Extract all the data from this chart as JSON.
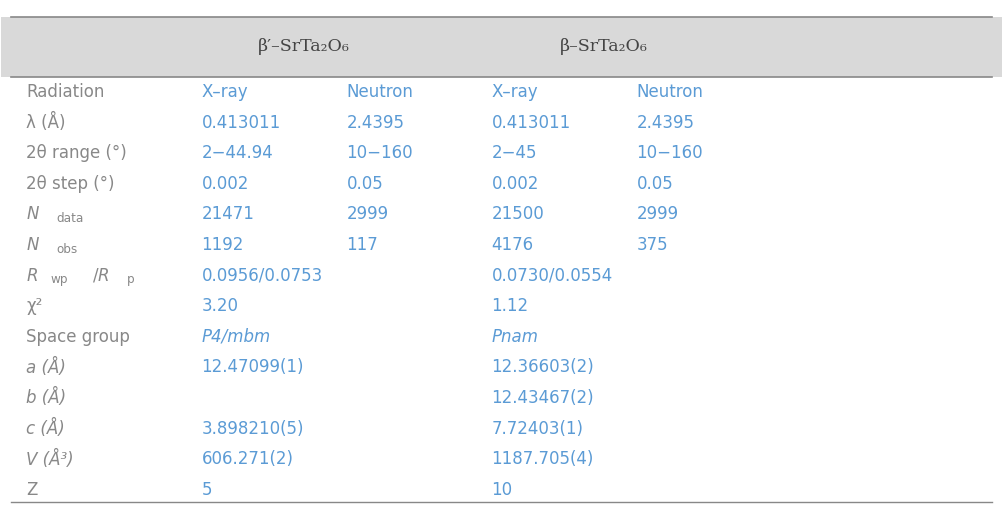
{
  "bg_color": "#ffffff",
  "header_bg": "#d9d9d9",
  "table_border_color": "#888888",
  "text_color_header": "#444444",
  "text_color_value": "#5b9bd5",
  "text_color_row_label": "#888888",
  "font_size": 12,
  "header_font_size": 12.5,
  "header_row": {
    "col1_text": "β′–SrTa₂O₆",
    "col2_text": "β–SrTa₂O₆"
  },
  "rows": [
    {
      "label": "Radiation",
      "label_style": "normal",
      "cols": [
        "X–ray",
        "Neutron",
        "X–ray",
        "Neutron"
      ]
    },
    {
      "label": "λ (Å)",
      "label_style": "normal",
      "cols": [
        "0.413011",
        "2.4395",
        "0.413011",
        "2.4395"
      ]
    },
    {
      "label": "2θ range (°)",
      "label_style": "normal",
      "cols": [
        "2−44.94",
        "10−160",
        "2−45",
        "10−160"
      ]
    },
    {
      "label": "2θ step (°)",
      "label_style": "normal",
      "cols": [
        "0.002",
        "0.05",
        "0.002",
        "0.05"
      ]
    },
    {
      "label": "N_data",
      "label_style": "subscript",
      "cols": [
        "21471",
        "2999",
        "21500",
        "2999"
      ]
    },
    {
      "label": "N_obs",
      "label_style": "subscript",
      "cols": [
        "1192",
        "117",
        "4176",
        "375"
      ]
    },
    {
      "label": "R_wp/R_p",
      "label_style": "subscript",
      "cols": [
        "0.0956/0.0753",
        "",
        "0.0730/0.0554",
        ""
      ]
    },
    {
      "label": "χ²",
      "label_style": "normal",
      "cols": [
        "3.20",
        "",
        "1.12",
        ""
      ]
    },
    {
      "label": "Space group",
      "label_style": "normal",
      "cols": [
        "P4/mbm",
        "",
        "Pnam",
        ""
      ]
    },
    {
      "label": "a (Å)",
      "label_style": "italic",
      "cols": [
        "12.47099(1)",
        "",
        "12.36603(2)",
        ""
      ]
    },
    {
      "label": "b (Å)",
      "label_style": "italic",
      "cols": [
        "",
        "",
        "12.43467(2)",
        ""
      ]
    },
    {
      "label": "c (Å)",
      "label_style": "italic",
      "cols": [
        "3.898210(5)",
        "",
        "7.72403(1)",
        ""
      ]
    },
    {
      "label": "V (Å³)",
      "label_style": "italic",
      "cols": [
        "606.271(2)",
        "",
        "1187.705(4)",
        ""
      ]
    },
    {
      "label": "Z",
      "label_style": "normal",
      "cols": [
        "5",
        "",
        "10",
        ""
      ]
    }
  ]
}
